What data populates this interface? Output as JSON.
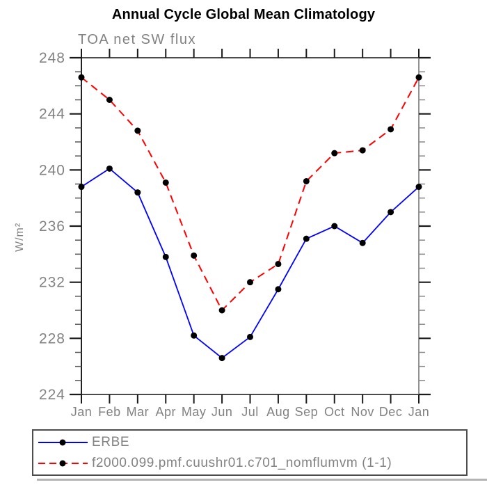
{
  "chart_data": {
    "type": "line",
    "title": "Annual Cycle Global Mean Climatology",
    "subtitle": "TOA net SW flux",
    "ylabel": "W/m²",
    "categories": [
      "Jan",
      "Feb",
      "Mar",
      "Apr",
      "May",
      "Jun",
      "Jul",
      "Aug",
      "Sep",
      "Oct",
      "Nov",
      "Dec",
      "Jan"
    ],
    "ylim": [
      224,
      248
    ],
    "ytick_major_step": 4,
    "ytick_minor_step": 1,
    "grid": false,
    "legend_position": "bottom-box",
    "series": [
      {
        "name": "ERBE",
        "line_style": "solid",
        "color": "#0000ff",
        "marker": "filled-circle",
        "marker_color": "#000000",
        "values": [
          238.8,
          240.1,
          238.4,
          233.8,
          228.2,
          226.6,
          228.1,
          231.5,
          235.1,
          236.0,
          234.8,
          237.0,
          238.8
        ]
      },
      {
        "name": "f2000.099.pmf.cuushr01.c701_nomflumvm (1-1)",
        "line_style": "dashed",
        "color": "#ff0000",
        "marker": "filled-circle",
        "marker_color": "#000000",
        "values": [
          246.6,
          245.0,
          242.8,
          239.1,
          233.9,
          230.0,
          232.0,
          233.3,
          239.2,
          241.2,
          241.4,
          242.9,
          246.6
        ]
      }
    ],
    "colors": {
      "title": "#000000",
      "text_gray": "#828282",
      "axis": "#333333",
      "axis_right": "#777777",
      "divider": "#b4b4b4"
    }
  }
}
